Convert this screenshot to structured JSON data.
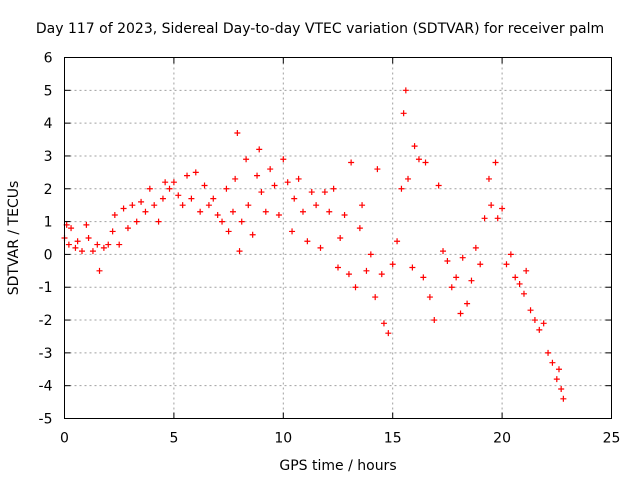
{
  "chart_data": {
    "type": "scatter",
    "title": "Day 117 of 2023, Sidereal Day-to-day VTEC variation (SDTVAR) for receiver palm",
    "xlabel": "GPS time / hours",
    "ylabel": "SDTVAR / TECUs",
    "xlim": [
      0,
      25
    ],
    "ylim": [
      -5,
      6
    ],
    "xticks": [
      0,
      5,
      10,
      15,
      20,
      25
    ],
    "yticks": [
      -5,
      -4,
      -3,
      -2,
      -1,
      0,
      1,
      2,
      3,
      4,
      5,
      6
    ],
    "grid": true,
    "marker": "+",
    "color": "#ff0000",
    "series": [
      {
        "name": "SDTVAR",
        "points": [
          [
            0.0,
            0.5
          ],
          [
            0.1,
            0.9
          ],
          [
            0.2,
            0.3
          ],
          [
            0.3,
            0.8
          ],
          [
            0.5,
            0.2
          ],
          [
            0.6,
            0.4
          ],
          [
            0.8,
            0.1
          ],
          [
            1.0,
            0.9
          ],
          [
            1.1,
            0.5
          ],
          [
            1.3,
            0.1
          ],
          [
            1.5,
            0.3
          ],
          [
            1.6,
            -0.5
          ],
          [
            1.8,
            0.2
          ],
          [
            2.0,
            0.3
          ],
          [
            2.2,
            0.7
          ],
          [
            2.3,
            1.2
          ],
          [
            2.5,
            0.3
          ],
          [
            2.7,
            1.4
          ],
          [
            2.9,
            0.8
          ],
          [
            3.1,
            1.5
          ],
          [
            3.3,
            1.0
          ],
          [
            3.5,
            1.6
          ],
          [
            3.7,
            1.3
          ],
          [
            3.9,
            2.0
          ],
          [
            4.1,
            1.5
          ],
          [
            4.3,
            1.0
          ],
          [
            4.5,
            1.7
          ],
          [
            4.6,
            2.2
          ],
          [
            4.8,
            2.0
          ],
          [
            5.0,
            2.2
          ],
          [
            5.2,
            1.8
          ],
          [
            5.4,
            1.5
          ],
          [
            5.6,
            2.4
          ],
          [
            5.8,
            1.7
          ],
          [
            6.0,
            2.5
          ],
          [
            6.2,
            1.3
          ],
          [
            6.4,
            2.1
          ],
          [
            6.6,
            1.5
          ],
          [
            6.8,
            1.7
          ],
          [
            7.0,
            1.2
          ],
          [
            7.2,
            1.0
          ],
          [
            7.4,
            2.0
          ],
          [
            7.5,
            0.7
          ],
          [
            7.7,
            1.3
          ],
          [
            7.8,
            2.3
          ],
          [
            7.9,
            3.7
          ],
          [
            8.0,
            0.1
          ],
          [
            8.1,
            1.0
          ],
          [
            8.3,
            2.9
          ],
          [
            8.4,
            1.5
          ],
          [
            8.6,
            0.6
          ],
          [
            8.8,
            2.4
          ],
          [
            8.9,
            3.2
          ],
          [
            9.0,
            1.9
          ],
          [
            9.2,
            1.3
          ],
          [
            9.4,
            2.6
          ],
          [
            9.6,
            2.1
          ],
          [
            9.8,
            1.2
          ],
          [
            10.0,
            2.9
          ],
          [
            10.2,
            2.2
          ],
          [
            10.4,
            0.7
          ],
          [
            10.5,
            1.7
          ],
          [
            10.7,
            2.3
          ],
          [
            10.9,
            1.3
          ],
          [
            11.1,
            0.4
          ],
          [
            11.3,
            1.9
          ],
          [
            11.5,
            1.5
          ],
          [
            11.7,
            0.2
          ],
          [
            11.9,
            1.9
          ],
          [
            12.1,
            1.3
          ],
          [
            12.3,
            2.0
          ],
          [
            12.5,
            -0.4
          ],
          [
            12.6,
            0.5
          ],
          [
            12.8,
            1.2
          ],
          [
            13.0,
            -0.6
          ],
          [
            13.1,
            2.8
          ],
          [
            13.3,
            -1.0
          ],
          [
            13.5,
            0.8
          ],
          [
            13.6,
            1.5
          ],
          [
            13.8,
            -0.5
          ],
          [
            14.0,
            0.0
          ],
          [
            14.2,
            -1.3
          ],
          [
            14.3,
            2.6
          ],
          [
            14.5,
            -0.6
          ],
          [
            14.6,
            -2.1
          ],
          [
            14.8,
            -2.4
          ],
          [
            15.0,
            -0.3
          ],
          [
            15.2,
            0.4
          ],
          [
            15.4,
            2.0
          ],
          [
            15.5,
            4.3
          ],
          [
            15.6,
            5.0
          ],
          [
            15.7,
            2.3
          ],
          [
            15.9,
            -0.4
          ],
          [
            16.0,
            3.3
          ],
          [
            16.2,
            2.9
          ],
          [
            16.4,
            -0.7
          ],
          [
            16.5,
            2.8
          ],
          [
            16.7,
            -1.3
          ],
          [
            16.9,
            -2.0
          ],
          [
            17.1,
            2.1
          ],
          [
            17.3,
            0.1
          ],
          [
            17.5,
            -0.2
          ],
          [
            17.7,
            -1.0
          ],
          [
            17.9,
            -0.7
          ],
          [
            18.1,
            -1.8
          ],
          [
            18.2,
            -0.1
          ],
          [
            18.4,
            -1.5
          ],
          [
            18.6,
            -0.8
          ],
          [
            18.8,
            0.2
          ],
          [
            19.0,
            -0.3
          ],
          [
            19.2,
            1.1
          ],
          [
            19.4,
            2.3
          ],
          [
            19.5,
            1.5
          ],
          [
            19.7,
            2.8
          ],
          [
            19.8,
            1.1
          ],
          [
            20.0,
            1.4
          ],
          [
            20.2,
            -0.3
          ],
          [
            20.4,
            0.0
          ],
          [
            20.6,
            -0.7
          ],
          [
            20.8,
            -0.9
          ],
          [
            21.0,
            -1.2
          ],
          [
            21.1,
            -0.5
          ],
          [
            21.3,
            -1.7
          ],
          [
            21.5,
            -2.0
          ],
          [
            21.7,
            -2.3
          ],
          [
            21.9,
            -2.1
          ],
          [
            22.1,
            -3.0
          ],
          [
            22.3,
            -3.3
          ],
          [
            22.5,
            -3.8
          ],
          [
            22.6,
            -3.5
          ],
          [
            22.7,
            -4.1
          ],
          [
            22.8,
            -4.4
          ]
        ]
      }
    ]
  }
}
